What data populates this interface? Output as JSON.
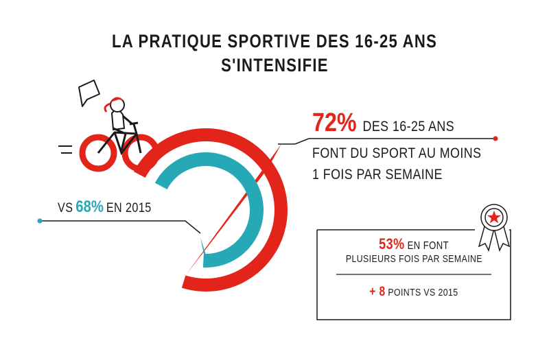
{
  "title": {
    "line1": "LA PRATIQUE SPORTIVE DES 16-25 ANS",
    "line2": "S'INTENSIFIE"
  },
  "colors": {
    "red": "#e3241b",
    "teal": "#27a8b7",
    "dark": "#1a1a1a"
  },
  "main_stat": {
    "value": "72%",
    "label": "DES 16-25 ANS",
    "line2": "FONT DU SPORT AU MOINS",
    "line3": "1 FOIS PAR SEMAINE"
  },
  "compare_stat": {
    "prefix": "VS",
    "value": "68%",
    "suffix": "EN 2015"
  },
  "box": {
    "value": "53%",
    "label": "EN FONT",
    "line2": "PLUSIEURS FOIS PAR SEMAINE",
    "delta": "+ 8",
    "delta_label": "POINTS VS 2015"
  },
  "icons": {
    "illustration": "girl-on-bicycle-icon",
    "badge": "rosette-star-icon"
  },
  "chart_data": {
    "type": "pie",
    "series": [
      {
        "values": [
          72
        ]
      },
      {
        "values": [
          68
        ]
      }
    ],
    "max": 100,
    "annotations": [
      "53% EN FONT PLUSIEURS FOIS PAR SEMAINE",
      "+ 8 POINTS VS 2015"
    ]
  }
}
